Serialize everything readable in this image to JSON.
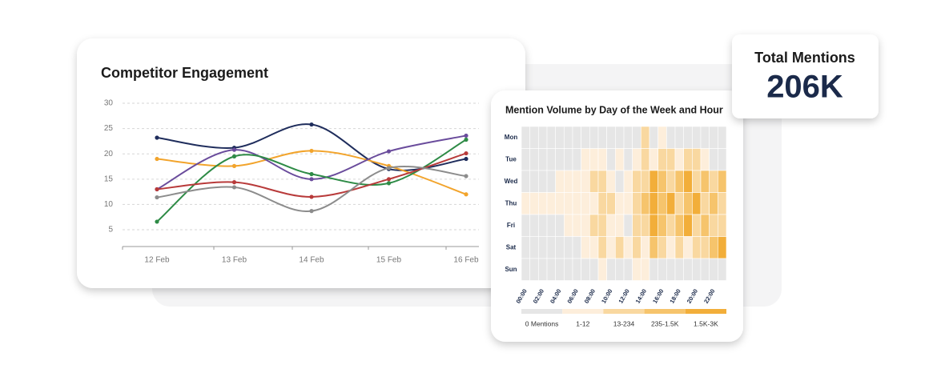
{
  "chart_data": [
    {
      "type": "line",
      "title": "Competitor Engagement",
      "categories": [
        "12 Feb",
        "13 Feb",
        "14 Feb",
        "15 Feb",
        "16 Feb"
      ],
      "series": [
        {
          "color": "#1f2d5c",
          "values": [
            23.2,
            21.2,
            25.8,
            17,
            19
          ]
        },
        {
          "color": "#f2a42c",
          "values": [
            19,
            17.6,
            20.6,
            17.6,
            12
          ]
        },
        {
          "color": "#6a4c9c",
          "values": [
            13,
            20.8,
            15,
            20.5,
            23.6
          ]
        },
        {
          "color": "#2e8b46",
          "values": [
            6.6,
            19.5,
            16,
            14.2,
            22.8
          ]
        },
        {
          "color": "#b83a3a",
          "values": [
            13,
            14.4,
            11.5,
            15,
            20.1
          ]
        },
        {
          "color": "#8c8c8c",
          "values": [
            11.4,
            13.4,
            8.7,
            17.2,
            15.6
          ]
        }
      ],
      "ylim": [
        2,
        30
      ],
      "yticks": [
        5,
        10,
        15,
        20,
        25,
        30
      ],
      "grid": true
    },
    {
      "type": "heatmap",
      "title": "Mention Volume by Day of the Week and Hour",
      "rows": [
        "Mon",
        "Tue",
        "Wed",
        "Thu",
        "Fri",
        "Sat",
        "Sun"
      ],
      "categories": [
        "00:00",
        null,
        "02:00",
        null,
        "04:00",
        null,
        "06:00",
        null,
        "08:00",
        null,
        "10:00",
        null,
        "12:00",
        null,
        "14:00",
        null,
        "16:00",
        null,
        "18:00",
        null,
        "20:00",
        null,
        "22:00",
        null
      ],
      "legend": [
        {
          "label": "0 Mentions",
          "color": "#e6e6e6"
        },
        {
          "label": "1-12",
          "color": "#fdeedb"
        },
        {
          "label": "13-234",
          "color": "#f9d8a0"
        },
        {
          "label": "235-1.5K",
          "color": "#f6c46c"
        },
        {
          "label": "1.5K-3K",
          "color": "#f2ae3a"
        }
      ],
      "values": [
        [
          0,
          0,
          0,
          0,
          0,
          0,
          0,
          0,
          0,
          0,
          0,
          0,
          0,
          0,
          2,
          0,
          1,
          0,
          0,
          0,
          0,
          0,
          0,
          0
        ],
        [
          0,
          0,
          0,
          0,
          0,
          0,
          0,
          1,
          1,
          1,
          0,
          1,
          0,
          1,
          2,
          1,
          2,
          2,
          1,
          2,
          2,
          1,
          0,
          0
        ],
        [
          0,
          0,
          0,
          0,
          1,
          1,
          1,
          1,
          2,
          2,
          1,
          0,
          1,
          2,
          2,
          4,
          3,
          2,
          3,
          4,
          2,
          3,
          2,
          3
        ],
        [
          1,
          1,
          1,
          1,
          1,
          1,
          1,
          1,
          1,
          2,
          2,
          1,
          1,
          2,
          3,
          4,
          3,
          4,
          2,
          3,
          4,
          2,
          3,
          2
        ],
        [
          0,
          0,
          0,
          0,
          0,
          1,
          1,
          1,
          2,
          2,
          1,
          1,
          0,
          2,
          2,
          4,
          3,
          2,
          3,
          4,
          2,
          3,
          2,
          2
        ],
        [
          0,
          0,
          0,
          0,
          0,
          0,
          0,
          1,
          1,
          2,
          1,
          2,
          1,
          2,
          1,
          3,
          2,
          1,
          2,
          1,
          2,
          2,
          3,
          4
        ],
        [
          0,
          0,
          0,
          0,
          0,
          0,
          0,
          0,
          0,
          1,
          0,
          0,
          0,
          1,
          1,
          0,
          0,
          0,
          0,
          0,
          0,
          0,
          0,
          0
        ]
      ]
    }
  ],
  "kpi": {
    "label": "Total Mentions",
    "value": "206K"
  }
}
